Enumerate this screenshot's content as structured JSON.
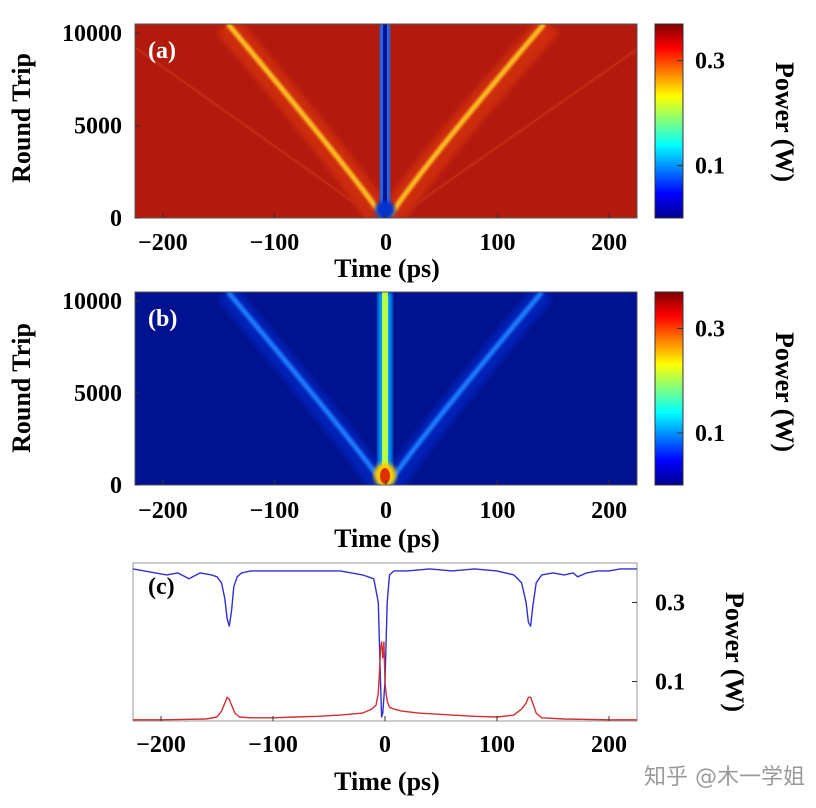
{
  "chart_data": [
    {
      "panel": "(a)",
      "type": "heatmap",
      "title": "",
      "xlabel": "Time (ps)",
      "ylabel": "Round Trip",
      "xlim": [
        -225,
        225
      ],
      "ylim": [
        0,
        10500
      ],
      "xticks": [
        -200,
        -100,
        0,
        100,
        200
      ],
      "yticks": [
        0,
        5000,
        10000
      ],
      "colorbar": {
        "label": "Power (W)",
        "ticks": [
          0.1,
          0.3
        ],
        "range": [
          0,
          0.37
        ]
      },
      "background_power": 0.33,
      "features": [
        {
          "kind": "center_dip",
          "x": -3,
          "power": 0.02
        },
        {
          "kind": "bright_trace",
          "from": [
            -5,
            0
          ],
          "to": [
            -140,
            10500
          ],
          "power": 0.36
        },
        {
          "kind": "bright_trace",
          "from": [
            5,
            0
          ],
          "to": [
            130,
            10500
          ],
          "power": 0.36
        },
        {
          "kind": "faint_trace",
          "from": [
            -10,
            0
          ],
          "to": [
            -230,
            9500
          ],
          "power": 0.31
        },
        {
          "kind": "faint_trace",
          "from": [
            10,
            0
          ],
          "to": [
            220,
            9500
          ],
          "power": 0.31
        }
      ]
    },
    {
      "panel": "(b)",
      "type": "heatmap",
      "title": "",
      "xlabel": "Time (ps)",
      "ylabel": "Round Trip",
      "xlim": [
        -225,
        225
      ],
      "ylim": [
        0,
        10500
      ],
      "xticks": [
        -200,
        -100,
        0,
        100,
        200
      ],
      "yticks": [
        0,
        5000,
        10000
      ],
      "colorbar": {
        "label": "Power (W)",
        "ticks": [
          0.1,
          0.3
        ],
        "range": [
          0,
          0.37
        ]
      },
      "background_power": 0.02,
      "features": [
        {
          "kind": "center_peak",
          "x": -3,
          "power": 0.18
        },
        {
          "kind": "bright_trace",
          "from": [
            -5,
            0
          ],
          "to": [
            -140,
            10500
          ],
          "power": 0.08
        },
        {
          "kind": "bright_trace",
          "from": [
            5,
            0
          ],
          "to": [
            130,
            10500
          ],
          "power": 0.08
        }
      ]
    },
    {
      "panel": "(c)",
      "type": "line",
      "title": "",
      "xlabel": "Time (ps)",
      "ylabel": "Power (W)",
      "xlim": [
        -225,
        225
      ],
      "ylim": [
        0,
        0.4
      ],
      "xticks": [
        -200,
        -100,
        0,
        100,
        200
      ],
      "yticks": [
        0.1,
        0.3
      ],
      "series": [
        {
          "color": "#3030d0",
          "x": [
            -225,
            -215,
            -205,
            -195,
            -185,
            -175,
            -165,
            -155,
            -150,
            -146,
            -143,
            -141,
            -139,
            -137,
            -135,
            -132,
            -128,
            -120,
            -100,
            -80,
            -60,
            -40,
            -20,
            -10,
            -6,
            -4,
            -3,
            -2,
            0,
            2,
            4,
            8,
            20,
            40,
            60,
            80,
            100,
            115,
            122,
            126,
            128,
            130,
            132,
            135,
            140,
            150,
            160,
            168,
            172,
            176,
            180,
            190,
            200,
            210,
            225
          ],
          "y": [
            0.385,
            0.38,
            0.375,
            0.37,
            0.375,
            0.36,
            0.375,
            0.37,
            0.365,
            0.35,
            0.31,
            0.26,
            0.24,
            0.28,
            0.34,
            0.365,
            0.375,
            0.38,
            0.38,
            0.38,
            0.38,
            0.38,
            0.37,
            0.36,
            0.3,
            0.1,
            0.01,
            0.02,
            0.1,
            0.3,
            0.37,
            0.38,
            0.38,
            0.385,
            0.38,
            0.385,
            0.38,
            0.37,
            0.35,
            0.3,
            0.25,
            0.24,
            0.29,
            0.35,
            0.37,
            0.375,
            0.37,
            0.375,
            0.365,
            0.37,
            0.375,
            0.38,
            0.38,
            0.385,
            0.385
          ]
        },
        {
          "color": "#d03030",
          "x": [
            -225,
            -200,
            -180,
            -160,
            -150,
            -146,
            -143,
            -141,
            -139,
            -137,
            -134,
            -130,
            -120,
            -100,
            -80,
            -60,
            -40,
            -20,
            -12,
            -8,
            -6,
            -5,
            -4,
            -3,
            -2,
            -1,
            0,
            1,
            2,
            4,
            8,
            15,
            30,
            60,
            80,
            100,
            115,
            122,
            126,
            128,
            130,
            132,
            135,
            140,
            160,
            200,
            225
          ],
          "y": [
            0.003,
            0.003,
            0.004,
            0.005,
            0.01,
            0.025,
            0.045,
            0.06,
            0.055,
            0.04,
            0.02,
            0.01,
            0.008,
            0.008,
            0.01,
            0.012,
            0.015,
            0.02,
            0.03,
            0.04,
            0.07,
            0.12,
            0.18,
            0.2,
            0.16,
            0.2,
            0.1,
            0.07,
            0.05,
            0.035,
            0.03,
            0.025,
            0.02,
            0.015,
            0.012,
            0.01,
            0.015,
            0.03,
            0.045,
            0.06,
            0.06,
            0.045,
            0.02,
            0.008,
            0.005,
            0.003,
            0.003
          ]
        }
      ]
    }
  ],
  "watermark": "知乎 @木一学姐"
}
